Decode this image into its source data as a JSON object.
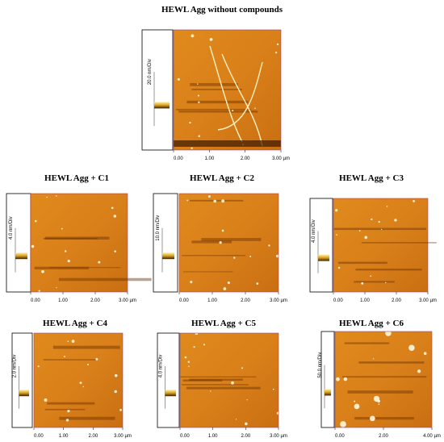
{
  "title": "HEWL Agg without compounds",
  "panels": [
    {
      "title": null,
      "scale_label": "20.0 nm/Div",
      "x_ticks": [
        "0.00",
        "1.00",
        "2.00",
        "3.00 µm"
      ]
    },
    {
      "title": "HEWL Agg + C1",
      "scale_label": "4.0 nm/Div",
      "x_ticks": [
        "0.00",
        "1.00",
        "2.00",
        "3.00 µm"
      ]
    },
    {
      "title": "HEWL Agg + C2",
      "scale_label": "10.0 nm/Div",
      "x_ticks": [
        "0.00",
        "1.00",
        "2.00",
        "3.00 µm"
      ]
    },
    {
      "title": "HEWL Agg + C3",
      "scale_label": "4.0 nm/Div",
      "x_ticks": [
        "0.00",
        "1.00",
        "2.00",
        "3.00 µm"
      ]
    },
    {
      "title": "HEWL Agg + C4",
      "scale_label": "2.0 nm/Div",
      "x_ticks": [
        "0.00",
        "1.00",
        "2.00",
        "3.00 µm"
      ]
    },
    {
      "title": "HEWL Agg + C5",
      "scale_label": "4.0 nm/Div",
      "x_ticks": [
        "0.00",
        "1.00",
        "2.00",
        "3.00 µm"
      ]
    },
    {
      "title": "HEWL Agg + C6",
      "scale_label": "50.0 nm/Div",
      "x_ticks": [
        "0.00",
        "2.00",
        "4.00 µm"
      ]
    }
  ]
}
